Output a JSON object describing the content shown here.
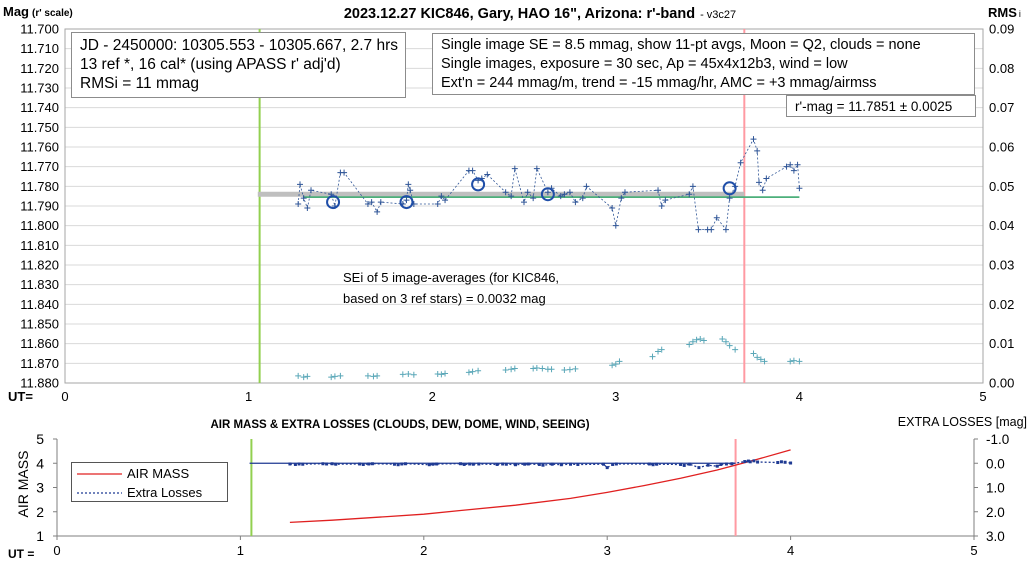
{
  "chart_data": [
    {
      "type": "scatter",
      "title": "2023.12.27 KIC846, Gary, HAO 16\", Arizona: r'-band",
      "version_tag": "- v3c27",
      "ylabel_main": "Mag",
      "ylabel_sub": "(r' scale)",
      "ylabel_right": "RMS",
      "ylabel_right_sub": "i",
      "xlabel": "UT=",
      "xlim": [
        0,
        5
      ],
      "ylim": [
        11.88,
        11.7
      ],
      "ylim_right": [
        0,
        0.09
      ],
      "y_ticks": [
        "11.700",
        "11.710",
        "11.720",
        "11.730",
        "11.740",
        "11.750",
        "11.760",
        "11.770",
        "11.780",
        "11.790",
        "11.800",
        "11.810",
        "11.820",
        "11.830",
        "11.840",
        "11.850",
        "11.860",
        "11.870",
        "11.880"
      ],
      "y_right_ticks": [
        "0.00",
        "0.01",
        "0.02",
        "0.03",
        "0.04",
        "0.05",
        "0.06",
        "0.07",
        "0.08",
        "0.09"
      ],
      "x_ticks": [
        "0",
        "1",
        "2",
        "3",
        "4",
        "5"
      ],
      "grid": true,
      "vertical_lines": [
        {
          "x": 1.06,
          "color": "#92d050"
        },
        {
          "x": 3.7,
          "color": "#ff9aa2"
        }
      ],
      "reference_lines": [
        {
          "name": "mean",
          "x": [
            1.05,
            3.7
          ],
          "y": 11.784,
          "color": "#bfbfbf"
        },
        {
          "name": "fit",
          "x": [
            1.3,
            4.0
          ],
          "y": 11.7855,
          "color": "#4caf7a"
        }
      ],
      "series": [
        {
          "role": "magnitudes",
          "color": "#2f5597",
          "x": [
            1.27,
            1.28,
            1.3,
            1.32,
            1.34,
            1.45,
            1.47,
            1.5,
            1.52,
            1.65,
            1.67,
            1.7,
            1.72,
            1.84,
            1.86,
            1.87,
            1.88,
            1.9,
            2.03,
            2.05,
            2.07,
            2.2,
            2.22,
            2.25,
            2.27,
            2.3,
            2.4,
            2.43,
            2.45,
            2.5,
            2.52,
            2.55,
            2.57,
            2.63,
            2.65,
            2.7,
            2.72,
            2.75,
            2.78,
            2.82,
            2.84,
            2.98,
            3.0,
            3.03,
            3.05,
            3.23,
            3.25,
            3.27,
            3.4,
            3.42,
            3.45,
            3.5,
            3.52,
            3.55,
            3.6,
            3.62,
            3.65,
            3.68,
            3.75,
            3.77,
            3.78,
            3.8,
            3.82,
            3.93,
            3.95,
            3.97,
            3.99,
            4.0
          ],
          "y": [
            11.789,
            11.779,
            11.786,
            11.791,
            11.782,
            11.784,
            11.79,
            11.773,
            11.773,
            11.789,
            11.788,
            11.793,
            11.788,
            11.789,
            11.787,
            11.779,
            11.782,
            11.789,
            11.789,
            11.785,
            11.787,
            11.772,
            11.772,
            11.777,
            11.776,
            11.774,
            11.783,
            11.785,
            11.771,
            11.788,
            11.783,
            11.786,
            11.771,
            11.783,
            11.781,
            11.785,
            11.784,
            11.783,
            11.788,
            11.786,
            11.78,
            11.791,
            11.8,
            11.786,
            11.783,
            11.782,
            11.79,
            11.787,
            11.784,
            11.78,
            11.802,
            11.802,
            11.802,
            11.796,
            11.802,
            11.786,
            11.78,
            11.768,
            11.756,
            11.762,
            11.778,
            11.782,
            11.776,
            11.77,
            11.769,
            11.772,
            11.769,
            11.781
          ]
        },
        {
          "role": "image averages",
          "color": "#1f4ea8",
          "x": [
            1.46,
            1.86,
            2.25,
            2.63,
            3.62
          ],
          "y": [
            11.788,
            11.788,
            11.779,
            11.784,
            11.781
          ]
        },
        {
          "role": "RMSi",
          "color": "#5aa7b8",
          "x": [
            1.27,
            1.3,
            1.32,
            1.45,
            1.47,
            1.5,
            1.65,
            1.68,
            1.7,
            1.84,
            1.87,
            1.9,
            2.03,
            2.05,
            2.07,
            2.2,
            2.22,
            2.25,
            2.4,
            2.43,
            2.45,
            2.55,
            2.57,
            2.6,
            2.63,
            2.65,
            2.72,
            2.75,
            2.78,
            2.98,
            3.0,
            3.02,
            3.2,
            3.23,
            3.25,
            3.4,
            3.42,
            3.44,
            3.46,
            3.48,
            3.58,
            3.6,
            3.62,
            3.65,
            3.75,
            3.77,
            3.79,
            3.81,
            3.95,
            3.97,
            4.0
          ],
          "y": [
            0.0018,
            0.0015,
            0.0017,
            0.0015,
            0.0017,
            0.0018,
            0.0018,
            0.0017,
            0.0018,
            0.0022,
            0.0023,
            0.0021,
            0.0023,
            0.0022,
            0.0024,
            0.0027,
            0.0029,
            0.0031,
            0.0033,
            0.0035,
            0.0037,
            0.0037,
            0.0038,
            0.0037,
            0.0035,
            0.0035,
            0.0033,
            0.0034,
            0.0036,
            0.0045,
            0.0048,
            0.0055,
            0.0067,
            0.008,
            0.0085,
            0.0098,
            0.0105,
            0.011,
            0.0112,
            0.0108,
            0.0112,
            0.0105,
            0.0095,
            0.0085,
            0.0075,
            0.0065,
            0.006,
            0.0055,
            0.0055,
            0.0057,
            0.0055
          ]
        }
      ],
      "annotations": {
        "box_left": [
          "JD - 2450000: 10305.553 - 10305.667, 2.7 hrs",
          "13 ref *, 16 cal* (using APASS r' adj'd)",
          "RMSi = 11 mmag"
        ],
        "box_right": [
          "Single image SE = 8.5 mmag, show  11-pt avgs, Moon = Q2, clouds = none",
          "Single images, exposure = 30 sec, Ap = 45x4x12b3, wind = low",
          "Ext'n = 244 mmag/m, trend = -15  mmag/hr, AMC = +3 mmag/airmss"
        ],
        "rmag": "r'-mag = 11.7851 ± 0.0025",
        "sei": [
          "SEi of 5 image-averages (for KIC846,",
          "based on 3 ref stars) = 0.0032 mag"
        ]
      }
    },
    {
      "type": "line",
      "title": "AIR MASS & EXTRA LOSSES (CLOUDS, DEW, DOME, WIND, SEEING)",
      "ylabel": "AIR MASS",
      "ylabel_right": "EXTRA LOSSES [mag]",
      "xlabel": "UT =",
      "xlim": [
        0,
        5
      ],
      "ylim": [
        1,
        5
      ],
      "ylim_right": [
        3.0,
        -1.0
      ],
      "y_ticks": [
        "1",
        "2",
        "3",
        "4",
        "5"
      ],
      "y_right_ticks": [
        "-1.0",
        "0.0",
        "1.0",
        "2.0",
        "3.0"
      ],
      "x_ticks": [
        "0",
        "1",
        "2",
        "3",
        "4",
        "5"
      ],
      "grid": false,
      "vertical_lines": [
        {
          "x": 1.06,
          "color": "#92d050"
        },
        {
          "x": 3.7,
          "color": "#ff9aa2"
        }
      ],
      "baseline": {
        "x": [
          1.05,
          3.7
        ],
        "y": 0.0,
        "color": "#1f3a93"
      },
      "series": [
        {
          "name": "AIR MASS",
          "color": "#e02020",
          "x": [
            1.27,
            1.5,
            1.8,
            2.0,
            2.2,
            2.5,
            2.8,
            3.0,
            3.2,
            3.4,
            3.6,
            3.8,
            4.0
          ],
          "y": [
            1.56,
            1.65,
            1.8,
            1.9,
            2.05,
            2.27,
            2.55,
            2.8,
            3.08,
            3.38,
            3.72,
            4.12,
            4.55
          ]
        },
        {
          "name": "Extra Losses",
          "color": "#1f3a93",
          "x": [
            1.27,
            1.3,
            1.32,
            1.34,
            1.45,
            1.47,
            1.5,
            1.52,
            1.65,
            1.67,
            1.7,
            1.72,
            1.84,
            1.86,
            1.88,
            1.9,
            2.03,
            2.05,
            2.07,
            2.2,
            2.22,
            2.25,
            2.27,
            2.3,
            2.4,
            2.43,
            2.45,
            2.5,
            2.55,
            2.57,
            2.63,
            2.65,
            2.7,
            2.75,
            2.8,
            2.84,
            2.98,
            3.0,
            3.03,
            3.05,
            3.23,
            3.25,
            3.27,
            3.4,
            3.42,
            3.45,
            3.5,
            3.55,
            3.6,
            3.62,
            3.65,
            3.68,
            3.75,
            3.77,
            3.78,
            3.8,
            3.82,
            3.93,
            3.95,
            3.97,
            4.0
          ],
          "y": [
            0.03,
            0.05,
            0.03,
            0.04,
            0.02,
            0.03,
            0.02,
            0.04,
            0.03,
            0.05,
            0.03,
            0.02,
            0.04,
            0.06,
            0.03,
            0.02,
            0.06,
            0.04,
            0.03,
            0.02,
            0.05,
            0.03,
            0.04,
            0.03,
            0.05,
            0.03,
            0.04,
            0.06,
            0.04,
            0.03,
            0.05,
            0.08,
            0.04,
            0.06,
            0.04,
            0.05,
            0.04,
            0.18,
            0.05,
            0.03,
            0.03,
            0.06,
            0.04,
            0.05,
            0.09,
            0.04,
            0.18,
            0.08,
            0.12,
            0.05,
            0.03,
            0.02,
            -0.07,
            -0.09,
            -0.06,
            -0.1,
            -0.05,
            -0.03,
            -0.06,
            -0.04,
            -0.01
          ]
        }
      ]
    }
  ]
}
